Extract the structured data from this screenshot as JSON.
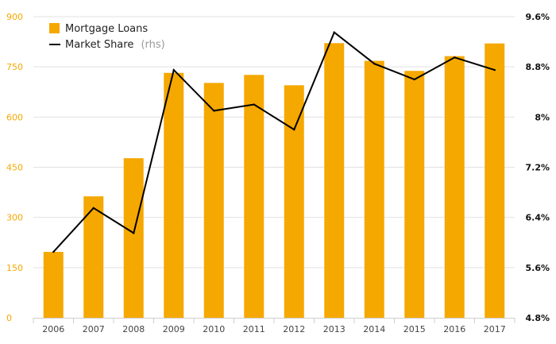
{
  "chart_data": {
    "type": "bar",
    "categories": [
      "2006",
      "2007",
      "2008",
      "2009",
      "2010",
      "2011",
      "2012",
      "2013",
      "2014",
      "2015",
      "2016",
      "2017"
    ],
    "series": [
      {
        "name": "Mortgage Loans",
        "type": "bar",
        "axis": "left",
        "color": "#f5a800",
        "values": [
          197,
          363,
          477,
          732,
          702,
          726,
          695,
          821,
          768,
          738,
          782,
          820
        ]
      },
      {
        "name": "Market Share",
        "name_suffix": "(rhs)",
        "type": "line",
        "axis": "right",
        "color": "#000000",
        "values": [
          5.85,
          6.55,
          6.15,
          8.75,
          8.1,
          8.2,
          7.8,
          9.35,
          8.85,
          8.6,
          8.95,
          8.75
        ]
      }
    ],
    "y_left": {
      "ylim": [
        0,
        900
      ],
      "ticks": [
        0,
        150,
        300,
        450,
        600,
        750,
        900
      ],
      "tick_labels": [
        "0",
        "150",
        "300",
        "450",
        "600",
        "750",
        "900"
      ]
    },
    "y_right": {
      "ylim": [
        4.8,
        9.6
      ],
      "ticks": [
        4.8,
        5.6,
        6.4,
        7.2,
        8.0,
        8.8,
        9.6
      ],
      "tick_labels": [
        "4.8%",
        "5.6%",
        "6.4%",
        "7.2%",
        "8%",
        "8.8%",
        "9.6%"
      ]
    },
    "grid": "horizontal",
    "legend_position": "top-left",
    "title": "",
    "xlabel": "",
    "ylabel": ""
  }
}
